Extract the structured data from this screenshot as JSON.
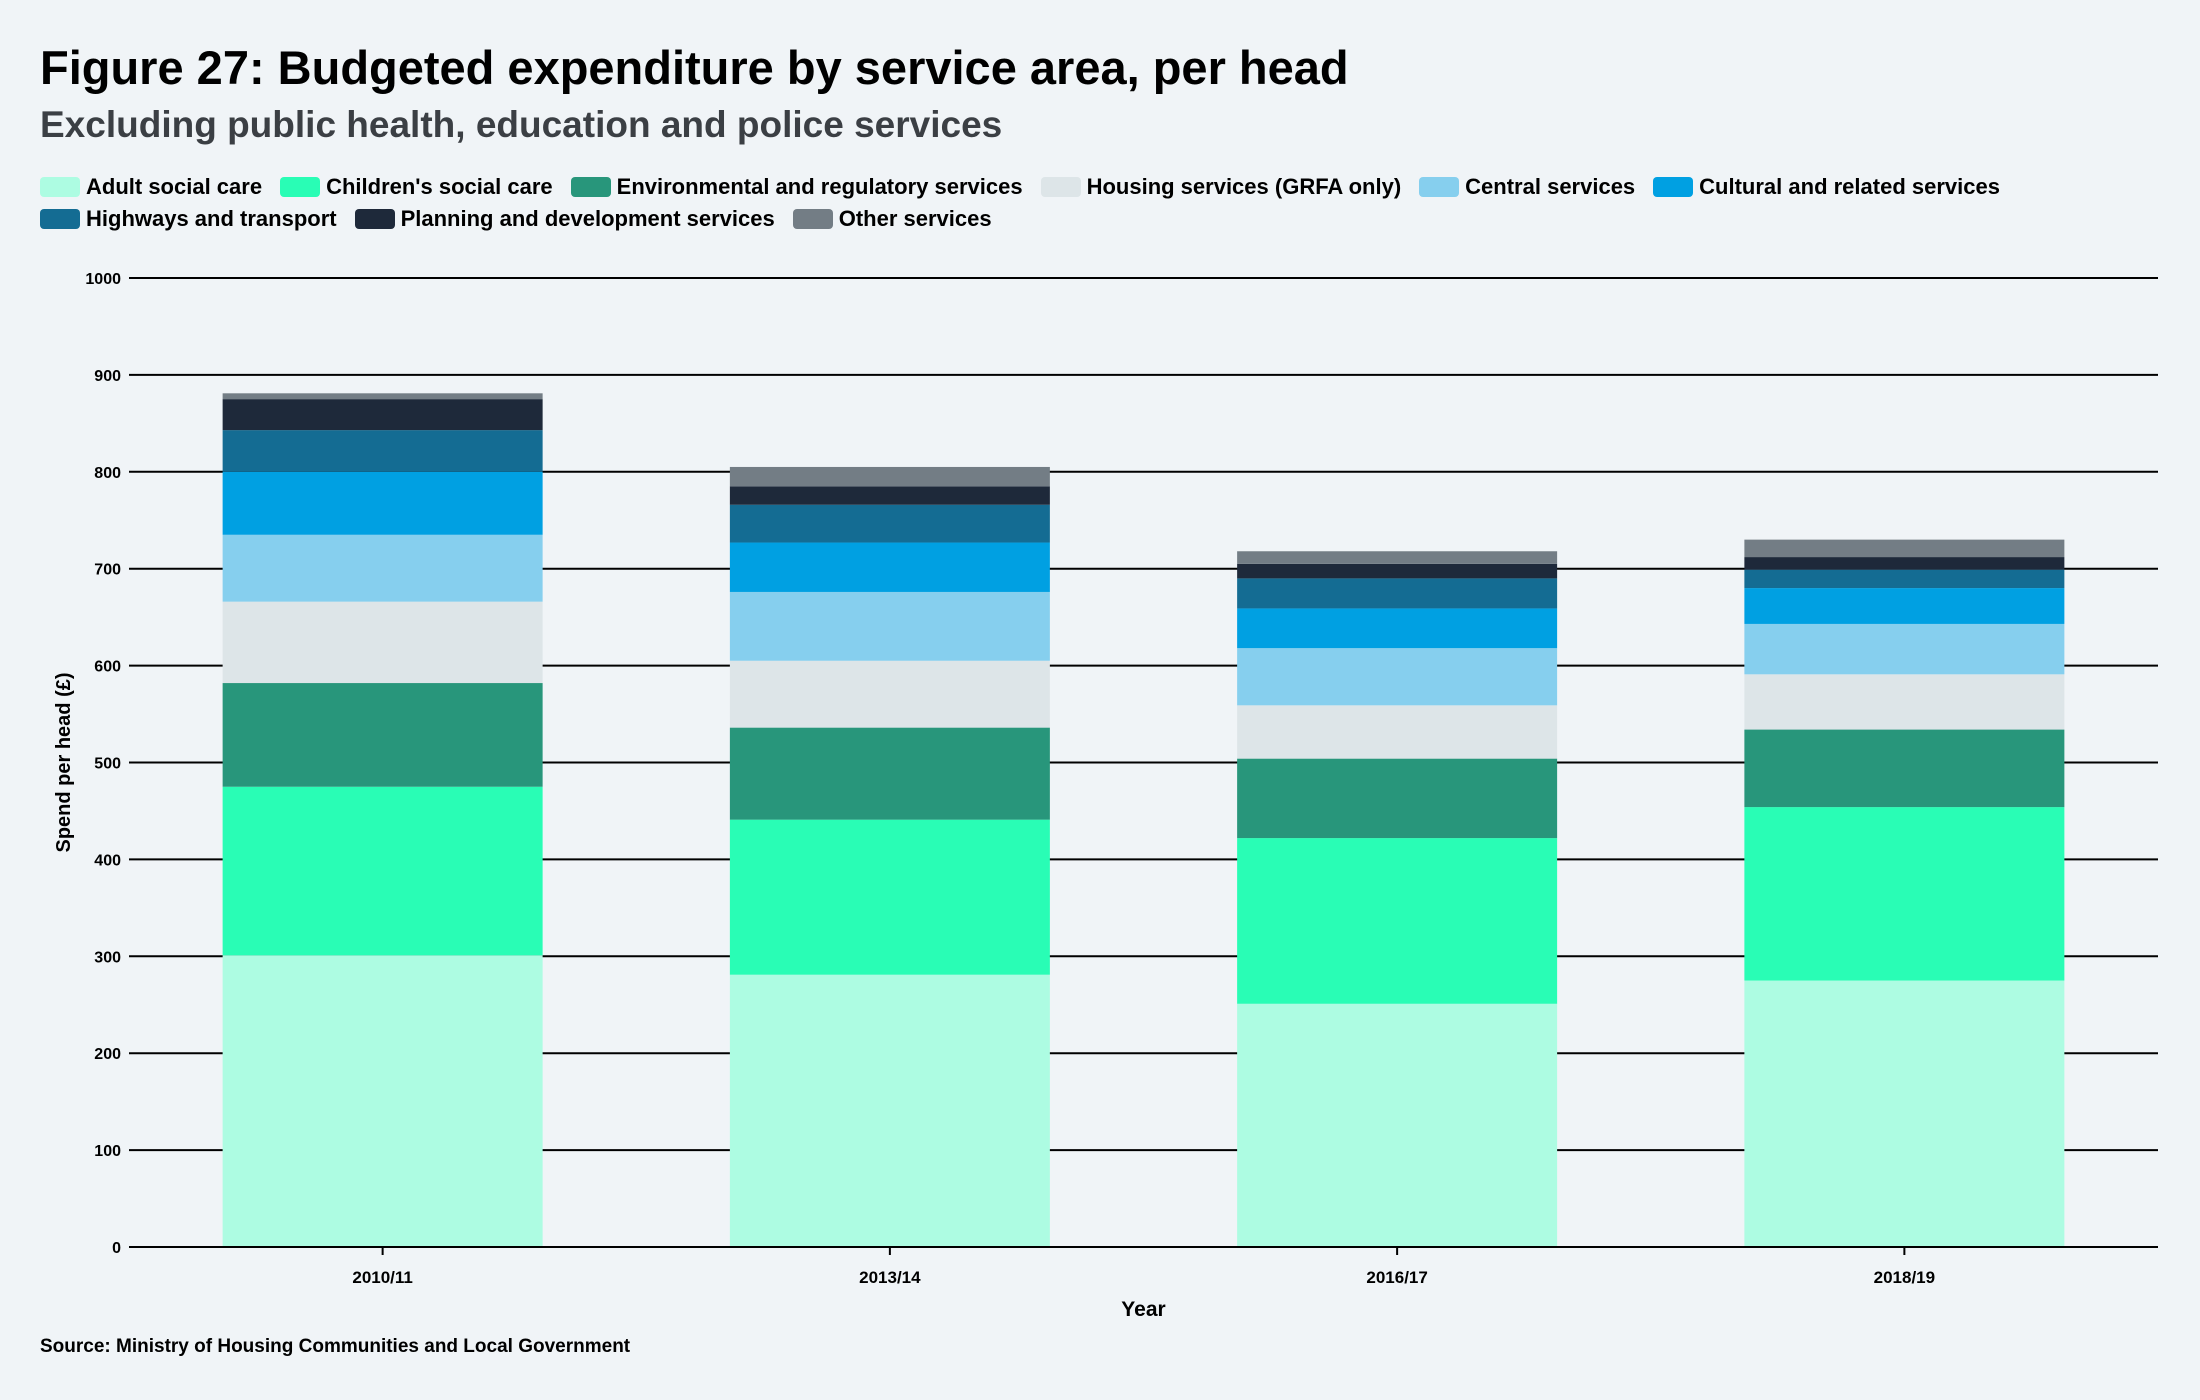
{
  "chart_data": {
    "type": "bar",
    "stacked": true,
    "title": "Figure 27: Budgeted expenditure by service area, per head",
    "subtitle": "Excluding public health, education and police services",
    "xlabel": "Year",
    "ylabel": "Spend per head (£)",
    "ylim": [
      0,
      1000
    ],
    "yticks": [
      0,
      100,
      200,
      300,
      400,
      500,
      600,
      700,
      800,
      900,
      1000
    ],
    "grid": true,
    "legend_position": "top",
    "categories": [
      "2010/11",
      "2013/14",
      "2016/17",
      "2018/19"
    ],
    "series": [
      {
        "name": "Adult social care",
        "color": "#adfce2",
        "values": [
          301,
          281,
          251,
          275
        ]
      },
      {
        "name": "Children's social care",
        "color": "#29fdb5",
        "values": [
          174,
          160,
          171,
          179
        ]
      },
      {
        "name": "Environmental and regulatory services",
        "color": "#28967b",
        "values": [
          107,
          95,
          82,
          80
        ]
      },
      {
        "name": "Housing services (GRFA only)",
        "color": "#dde5e8",
        "values": [
          84,
          69,
          55,
          57
        ]
      },
      {
        "name": "Central services",
        "color": "#86cfee",
        "values": [
          69,
          71,
          59,
          52
        ]
      },
      {
        "name": "Cultural and related services",
        "color": "#00a0e2",
        "values": [
          65,
          51,
          41,
          37
        ]
      },
      {
        "name": "Highways and transport",
        "color": "#146c93",
        "values": [
          43,
          39,
          31,
          19
        ]
      },
      {
        "name": "Planning and development services",
        "color": "#1e293a",
        "values": [
          32,
          19,
          15,
          13
        ]
      },
      {
        "name": "Other services",
        "color": "#737d85",
        "values": [
          6,
          20,
          13,
          18
        ]
      }
    ],
    "source": "Source: Ministry of Housing Communities and Local Government"
  }
}
